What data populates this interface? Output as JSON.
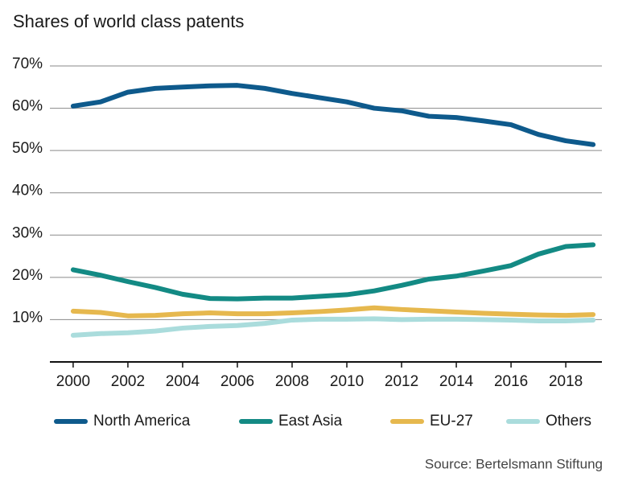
{
  "chart_data": {
    "type": "line",
    "title": "Shares of world class patents",
    "source": "Source: Bertelsmann Stiftung",
    "x": [
      2000,
      2001,
      2002,
      2003,
      2004,
      2005,
      2006,
      2007,
      2008,
      2009,
      2010,
      2011,
      2012,
      2013,
      2014,
      2015,
      2016,
      2017,
      2018,
      2019
    ],
    "series": [
      {
        "name": "North America",
        "color": "#0e5a8c",
        "values": [
          60.5,
          61.5,
          63.8,
          64.7,
          65.0,
          65.3,
          65.4,
          64.7,
          63.5,
          62.5,
          61.5,
          60.0,
          59.4,
          58.1,
          57.8,
          57.0,
          56.1,
          53.8,
          52.3,
          51.4
        ]
      },
      {
        "name": "East Asia",
        "color": "#138a84",
        "values": [
          21.8,
          20.5,
          19.0,
          17.6,
          16.0,
          15.0,
          14.9,
          15.1,
          15.1,
          15.5,
          15.9,
          16.8,
          18.1,
          19.6,
          20.3,
          21.5,
          22.8,
          25.5,
          27.3,
          27.7
        ]
      },
      {
        "name": "EU-27",
        "color": "#e6b84e",
        "values": [
          12.0,
          11.7,
          10.9,
          11.0,
          11.4,
          11.6,
          11.4,
          11.4,
          11.6,
          11.9,
          12.3,
          12.8,
          12.4,
          12.1,
          11.8,
          11.5,
          11.3,
          11.1,
          11.0,
          11.2
        ]
      },
      {
        "name": "Others",
        "color": "#aadcdc",
        "values": [
          6.3,
          6.7,
          6.9,
          7.3,
          8.0,
          8.4,
          8.6,
          9.1,
          9.9,
          10.1,
          10.1,
          10.2,
          10.0,
          10.1,
          10.1,
          10.0,
          9.9,
          9.7,
          9.7,
          9.9
        ]
      }
    ],
    "xlim": [
      1999.15,
      2019.32
    ],
    "xticks": [
      2000,
      2002,
      2004,
      2006,
      2008,
      2010,
      2012,
      2014,
      2016,
      2018
    ],
    "ylim": [
      0,
      70
    ],
    "yticks": [
      {
        "value": 10,
        "label": "10%"
      },
      {
        "value": 20,
        "label": "20%"
      },
      {
        "value": 30,
        "label": "30%"
      },
      {
        "value": 40,
        "label": "40%"
      },
      {
        "value": 50,
        "label": "50%"
      },
      {
        "value": 60,
        "label": "60%"
      },
      {
        "value": 70,
        "label": "70%"
      }
    ],
    "grid": true,
    "legend": "bottom"
  }
}
